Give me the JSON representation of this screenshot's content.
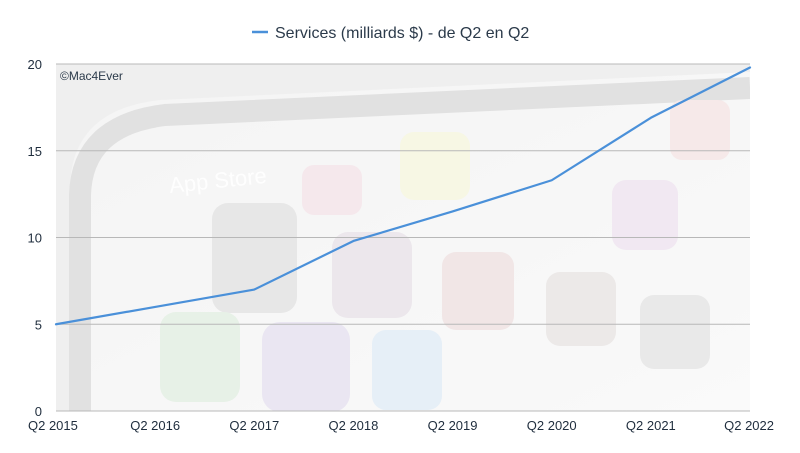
{
  "chart_data": {
    "type": "line",
    "categories": [
      "Q2 2015",
      "Q2 2016",
      "Q2 2017",
      "Q2 2018",
      "Q2 2019",
      "Q2 2020",
      "Q2 2021",
      "Q2 2022"
    ],
    "series": [
      {
        "name": "Services (milliards $) - de Q2 en Q2",
        "values": [
          5.0,
          6.0,
          7.0,
          9.8,
          11.5,
          13.3,
          16.9,
          19.8
        ],
        "color": "#4a90d9"
      }
    ],
    "ylim": [
      0,
      20
    ],
    "yticks": [
      0,
      5,
      10,
      15,
      20
    ],
    "grid": true,
    "legend_position": "top-center",
    "watermark": "©Mac4Ever"
  }
}
